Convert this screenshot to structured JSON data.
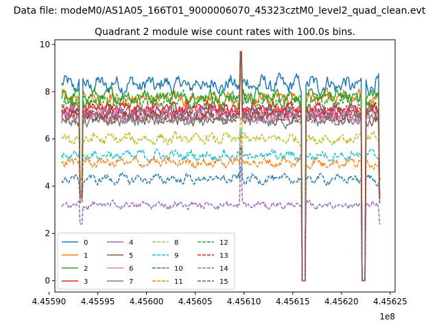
{
  "chart_data": {
    "type": "line",
    "suptitle": "Data file: modeM0/AS1A05_166T01_9000006070_45323cztM0_level2_quad_clean.evt",
    "title": "Quadrant 2 module wise count rates with 100.0s bins.",
    "xlabel": "",
    "ylabel": "",
    "x_offset_label": "1e8",
    "xlim": [
      4.455906,
      4.456255
    ],
    "ylim": [
      -0.48,
      10.2
    ],
    "x_ticks": [
      {
        "value": 4.4559,
        "label": "4.45590"
      },
      {
        "value": 4.45595,
        "label": "4.45595"
      },
      {
        "value": 4.456,
        "label": "4.45600"
      },
      {
        "value": 4.45605,
        "label": "4.45605"
      },
      {
        "value": 4.4561,
        "label": "4.45610"
      },
      {
        "value": 4.45615,
        "label": "4.45615"
      },
      {
        "value": 4.4562,
        "label": "4.45620"
      },
      {
        "value": 4.45625,
        "label": "4.45625"
      }
    ],
    "y_ticks": [
      {
        "value": 0,
        "label": "0"
      },
      {
        "value": 2,
        "label": "2"
      },
      {
        "value": 4,
        "label": "4"
      },
      {
        "value": 6,
        "label": "6"
      },
      {
        "value": 8,
        "label": "8"
      },
      {
        "value": 10,
        "label": "10"
      }
    ],
    "x_range": [
      4.455913,
      4.45624
    ],
    "gaps": [
      [
        4.456159,
        4.456163
      ],
      [
        4.456221,
        4.456225
      ]
    ],
    "spike_x": 4.456097,
    "legend_position": "lower-left",
    "grid": false,
    "series": [
      {
        "name": "0",
        "color": "#1f77b4",
        "dashed": false,
        "base": 8.3,
        "amp": 0.45,
        "dip": 3.6
      },
      {
        "name": "1",
        "color": "#ff7f0e",
        "dashed": false,
        "base": 7.7,
        "amp": 0.4,
        "dip": 3.5
      },
      {
        "name": "2",
        "color": "#2ca02c",
        "dashed": false,
        "base": 7.8,
        "amp": 0.4,
        "dip": 3.7
      },
      {
        "name": "3",
        "color": "#d62728",
        "dashed": false,
        "base": 7.3,
        "amp": 0.35,
        "dip": 4.3
      },
      {
        "name": "4",
        "color": "#9467bd",
        "dashed": false,
        "base": 7.1,
        "amp": 0.35,
        "dip": 3.8
      },
      {
        "name": "5",
        "color": "#8c564b",
        "dashed": false,
        "base": 6.9,
        "amp": 0.35,
        "dip": 3.6
      },
      {
        "name": "6",
        "color": "#e377c2",
        "dashed": false,
        "base": 7.0,
        "amp": 0.35,
        "dip": 3.7
      },
      {
        "name": "7",
        "color": "#7f7f7f",
        "dashed": false,
        "base": 6.8,
        "amp": 0.35,
        "dip": 3.6
      },
      {
        "name": "8",
        "color": "#bcbd22",
        "dashed": true,
        "base": 6.0,
        "amp": 0.3,
        "dip": 3.5
      },
      {
        "name": "9",
        "color": "#17becf",
        "dashed": true,
        "base": 5.3,
        "amp": 0.28,
        "dip": 3.4
      },
      {
        "name": "10",
        "color": "#1f77b4",
        "dashed": true,
        "base": 4.3,
        "amp": 0.25,
        "dip": 3.3
      },
      {
        "name": "11",
        "color": "#ff7f0e",
        "dashed": true,
        "base": 5.0,
        "amp": 0.28,
        "dip": 3.4
      },
      {
        "name": "12",
        "color": "#2ca02c",
        "dashed": true,
        "base": 7.6,
        "amp": 0.4,
        "dip": 3.6
      },
      {
        "name": "13",
        "color": "#d62728",
        "dashed": true,
        "base": 7.2,
        "amp": 0.35,
        "dip": 3.5
      },
      {
        "name": "14",
        "color": "#9467bd",
        "dashed": true,
        "base": 3.2,
        "amp": 0.2,
        "dip": 2.4
      },
      {
        "name": "15",
        "color": "#8c564b",
        "dashed": true,
        "base": 7.0,
        "amp": 0.35,
        "dip": 3.6
      }
    ]
  }
}
